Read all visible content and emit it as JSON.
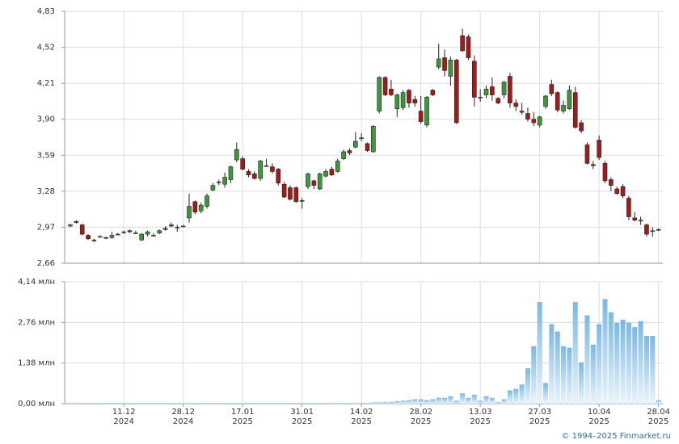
{
  "chart_data": [
    {
      "type": "candlestick",
      "up_color": "#3a9a3a",
      "down_color": "#a31a1a",
      "grid": true,
      "ylim": [
        2.66,
        4.83
      ],
      "yticks": [
        {
          "value": 2.66,
          "label": "2,66"
        },
        {
          "value": 2.97,
          "label": "2,97"
        },
        {
          "value": 3.28,
          "label": "3,28"
        },
        {
          "value": 3.59,
          "label": "3,59"
        },
        {
          "value": 3.9,
          "label": "3,90"
        },
        {
          "value": 4.21,
          "label": "4,21"
        },
        {
          "value": 4.52,
          "label": "4,52"
        },
        {
          "value": 4.83,
          "label": "4,83"
        }
      ],
      "open": [
        2.98,
        3.01,
        2.99,
        2.9,
        2.86,
        2.89,
        2.88,
        2.88,
        2.91,
        2.93,
        2.94,
        2.92,
        2.86,
        2.91,
        2.9,
        2.92,
        2.96,
        2.99,
        2.97,
        2.98,
        3.05,
        3.19,
        3.11,
        3.15,
        3.29,
        3.36,
        3.34,
        3.38,
        3.55,
        3.56,
        3.45,
        3.43,
        3.39,
        3.5,
        3.49,
        3.47,
        3.34,
        3.31,
        3.31,
        3.2,
        3.32,
        3.37,
        3.3,
        3.41,
        3.47,
        3.45,
        3.56,
        3.63,
        3.66,
        3.74,
        3.69,
        3.62,
        3.97,
        4.26,
        4.16,
        3.99,
        4.0,
        4.15,
        4.07,
        3.97,
        3.85,
        4.15,
        4.35,
        4.43,
        4.27,
        4.41,
        4.62,
        4.61,
        4.4,
        4.09,
        4.11,
        4.18,
        4.08,
        4.11,
        4.27,
        4.04,
        3.97,
        3.95,
        3.9,
        3.85,
        4.01,
        4.2,
        4.13,
        3.97,
        3.99,
        4.13,
        3.87,
        3.68,
        3.51,
        3.72,
        3.52,
        3.38,
        3.3,
        3.32,
        3.22,
        3.05,
        3.03,
        2.99,
        2.94,
        2.95
      ],
      "high": [
        3.0,
        3.03,
        3.0,
        2.91,
        2.87,
        2.9,
        2.89,
        2.93,
        2.92,
        2.94,
        2.95,
        2.94,
        2.92,
        2.94,
        2.92,
        2.95,
        2.98,
        3.01,
        2.99,
        2.99,
        3.26,
        3.2,
        3.18,
        3.26,
        3.35,
        3.38,
        3.44,
        3.5,
        3.7,
        3.58,
        3.47,
        3.45,
        3.55,
        3.56,
        3.52,
        3.48,
        3.36,
        3.33,
        3.32,
        3.22,
        3.44,
        3.38,
        3.44,
        3.47,
        3.49,
        3.56,
        3.64,
        3.65,
        3.79,
        3.78,
        3.7,
        3.85,
        4.27,
        4.27,
        4.24,
        4.12,
        4.15,
        4.16,
        4.1,
        4.1,
        4.1,
        4.16,
        4.55,
        4.5,
        4.44,
        4.42,
        4.68,
        4.63,
        4.45,
        4.16,
        4.19,
        4.26,
        4.09,
        4.23,
        4.3,
        4.07,
        4.04,
        4.0,
        3.96,
        3.93,
        4.11,
        4.24,
        4.14,
        4.06,
        4.19,
        4.18,
        3.89,
        3.7,
        3.54,
        3.76,
        3.54,
        3.4,
        3.32,
        3.34,
        3.24,
        3.1,
        3.06,
        3.0,
        2.97,
        2.96
      ],
      "low": [
        2.97,
        3.0,
        2.9,
        2.86,
        2.84,
        2.88,
        2.87,
        2.87,
        2.9,
        2.91,
        2.92,
        2.91,
        2.85,
        2.89,
        2.89,
        2.91,
        2.94,
        2.97,
        2.93,
        2.97,
        3.01,
        3.08,
        3.09,
        3.13,
        3.28,
        3.33,
        3.31,
        3.35,
        3.53,
        3.46,
        3.4,
        3.38,
        3.37,
        3.49,
        3.43,
        3.33,
        3.22,
        3.2,
        3.18,
        3.13,
        3.3,
        3.3,
        3.29,
        3.4,
        3.41,
        3.44,
        3.55,
        3.59,
        3.65,
        3.71,
        3.62,
        3.61,
        3.95,
        4.1,
        4.1,
        3.92,
        3.98,
        4.0,
        4.01,
        3.86,
        3.83,
        4.1,
        4.33,
        4.27,
        4.19,
        3.86,
        4.48,
        4.41,
        4.01,
        4.05,
        4.08,
        4.06,
        4.03,
        4.08,
        4.0,
        3.97,
        3.94,
        3.88,
        3.84,
        3.83,
        3.99,
        4.1,
        3.96,
        3.95,
        3.98,
        3.82,
        3.78,
        3.51,
        3.47,
        3.55,
        3.35,
        3.28,
        3.25,
        3.22,
        3.03,
        3.02,
        2.99,
        2.89,
        2.89,
        2.94
      ],
      "close": [
        2.99,
        3.02,
        2.91,
        2.87,
        2.86,
        2.89,
        2.88,
        2.9,
        2.91,
        2.93,
        2.93,
        2.92,
        2.91,
        2.93,
        2.9,
        2.94,
        2.95,
        2.98,
        2.97,
        2.98,
        3.15,
        3.1,
        3.16,
        3.24,
        3.33,
        3.36,
        3.4,
        3.49,
        3.64,
        3.47,
        3.42,
        3.39,
        3.54,
        3.5,
        3.45,
        3.35,
        3.23,
        3.21,
        3.19,
        3.2,
        3.43,
        3.33,
        3.43,
        3.45,
        3.42,
        3.54,
        3.62,
        3.61,
        3.71,
        3.74,
        3.63,
        3.84,
        4.26,
        4.11,
        4.11,
        4.11,
        4.13,
        4.04,
        4.04,
        3.88,
        4.09,
        4.11,
        4.42,
        4.32,
        4.41,
        3.87,
        4.49,
        4.43,
        4.09,
        4.09,
        4.16,
        4.11,
        4.04,
        4.22,
        4.04,
        4.01,
        3.96,
        3.9,
        3.87,
        3.92,
        4.1,
        4.12,
        3.98,
        4.02,
        4.15,
        3.83,
        3.8,
        3.52,
        3.5,
        3.57,
        3.37,
        3.33,
        3.26,
        3.24,
        3.06,
        3.03,
        3.03,
        2.91,
        2.94,
        2.95
      ]
    },
    {
      "type": "bar",
      "color": "#7ab8e8",
      "grid": true,
      "ylim": [
        0,
        4.14
      ],
      "yticks": [
        {
          "value": 0,
          "label": "0,00 млн"
        },
        {
          "value": 1.38,
          "label": "1,38 млн"
        },
        {
          "value": 2.76,
          "label": "2,76 млн"
        },
        {
          "value": 4.14,
          "label": "4,14 млн"
        }
      ],
      "categories": [
        null,
        null,
        null,
        null,
        null,
        null,
        null,
        null,
        null,
        "11.12 2024",
        null,
        null,
        null,
        null,
        null,
        null,
        null,
        null,
        null,
        "28.12 2024",
        null,
        null,
        null,
        null,
        null,
        null,
        null,
        null,
        null,
        "17.01 2025",
        null,
        null,
        null,
        null,
        null,
        null,
        null,
        null,
        null,
        "31.01 2025",
        null,
        null,
        null,
        null,
        null,
        null,
        null,
        null,
        null,
        "14.02 2025",
        null,
        null,
        null,
        null,
        null,
        null,
        null,
        null,
        null,
        "28.02 2025",
        null,
        null,
        null,
        null,
        null,
        null,
        null,
        null,
        null,
        "13.03 2025",
        null,
        null,
        null,
        null,
        null,
        null,
        null,
        null,
        null,
        "27.03 2025",
        null,
        null,
        null,
        null,
        null,
        null,
        null,
        null,
        null,
        "10.04 2025",
        null,
        null,
        null,
        null,
        null,
        null,
        null,
        null,
        null,
        "28.04 2025"
      ],
      "values": [
        0.02,
        0.02,
        0.03,
        0.02,
        0.02,
        0.02,
        0.02,
        0.02,
        0.02,
        0.02,
        0.02,
        0.02,
        0.02,
        0.02,
        0.02,
        0.02,
        0.02,
        0.02,
        0.02,
        0.02,
        0.03,
        0.02,
        0.02,
        0.02,
        0.02,
        0.02,
        0.02,
        0.02,
        0.03,
        0.02,
        0.02,
        0.02,
        0.02,
        0.02,
        0.02,
        0.02,
        0.02,
        0.02,
        0.02,
        0.02,
        0.02,
        0.02,
        0.02,
        0.02,
        0.02,
        0.02,
        0.02,
        0.02,
        0.03,
        0.03,
        0.02,
        0.04,
        0.05,
        0.06,
        0.06,
        0.08,
        0.1,
        0.12,
        0.15,
        0.15,
        0.12,
        0.15,
        0.2,
        0.2,
        0.25,
        0.1,
        0.35,
        0.2,
        0.3,
        0.1,
        0.25,
        0.2,
        0.05,
        0.15,
        0.45,
        0.5,
        0.65,
        1.2,
        1.95,
        3.45,
        0.7,
        2.7,
        2.45,
        1.95,
        1.9,
        3.45,
        1.4,
        3.0,
        2.0,
        2.7,
        3.55,
        3.1,
        2.75,
        2.85,
        2.75,
        2.6,
        2.8,
        2.3,
        2.3,
        0.12
      ]
    }
  ],
  "credit": "© 1994–2025 Finmarket.ru"
}
